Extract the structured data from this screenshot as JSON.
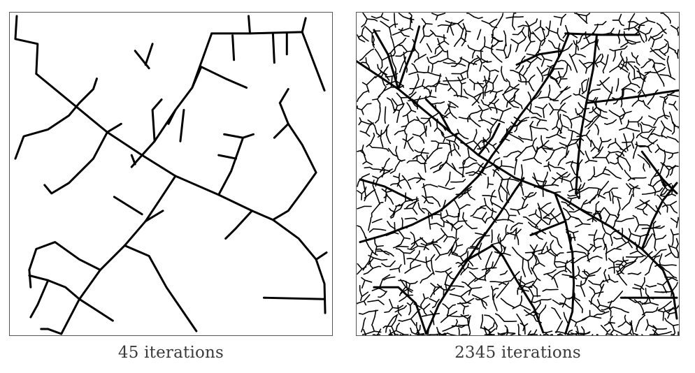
{
  "figure": {
    "left_panel": {
      "caption": "45 iterations",
      "line_color": "#000000"
    },
    "right_panel": {
      "caption": "2345 iterations",
      "line_color": "#000000"
    }
  }
}
